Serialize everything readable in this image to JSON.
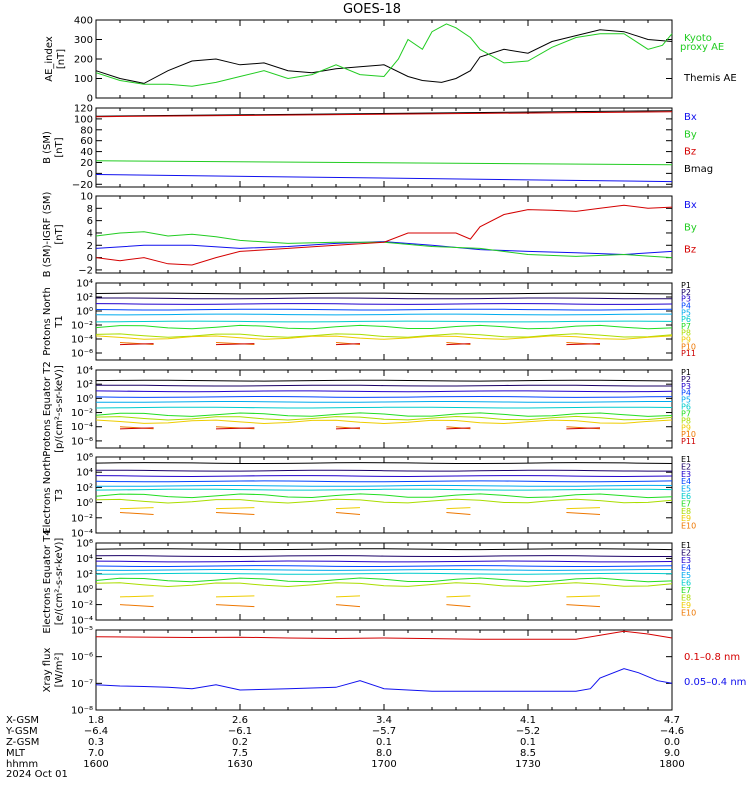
{
  "title": "GOES-18",
  "colors": {
    "black": "#000000",
    "red": "#d40000",
    "green": "#22cc22",
    "blue": "#1010ee",
    "P": [
      "#000000",
      "#1a0066",
      "#2200cc",
      "#0044ff",
      "#00aaee",
      "#00cccc",
      "#22dd22",
      "#aadd00",
      "#eecc00",
      "#ee7700",
      "#cc0000"
    ],
    "E": [
      "#000000",
      "#1a0066",
      "#2200cc",
      "#0044ff",
      "#00aaee",
      "#00cccc",
      "#22dd22",
      "#aadd00",
      "#eecc00",
      "#ee7700",
      "#cc0000",
      "#aa0000"
    ]
  },
  "chart_data": [
    {
      "type": "line",
      "ylabel": "AE_index [nT]",
      "ylim": [
        0,
        400
      ],
      "yticks": [
        "0",
        "100",
        "200",
        "300",
        "400"
      ],
      "legend": [
        {
          "label": "Kyoto proxy AE",
          "color": "green"
        },
        {
          "label": "Themis AE",
          "color": "black"
        }
      ],
      "series": [
        {
          "name": "Themis AE",
          "color": "black",
          "x": [
            1600,
            1605,
            1610,
            1615,
            1620,
            1625,
            1630,
            1635,
            1640,
            1645,
            1650,
            1655,
            1700,
            1705,
            1708,
            1712,
            1715,
            1718,
            1720,
            1725,
            1730,
            1735,
            1740,
            1745,
            1750,
            1755,
            1800
          ],
          "y": [
            140,
            100,
            75,
            140,
            190,
            200,
            170,
            180,
            140,
            130,
            150,
            160,
            170,
            110,
            90,
            80,
            100,
            140,
            210,
            250,
            230,
            290,
            320,
            350,
            340,
            300,
            290
          ]
        },
        {
          "name": "Kyoto proxy AE",
          "color": "green",
          "x": [
            1600,
            1605,
            1610,
            1615,
            1620,
            1625,
            1630,
            1635,
            1640,
            1645,
            1650,
            1655,
            1700,
            1703,
            1705,
            1708,
            1710,
            1713,
            1715,
            1718,
            1720,
            1725,
            1730,
            1735,
            1740,
            1745,
            1750,
            1755,
            1758,
            1800
          ],
          "y": [
            130,
            90,
            70,
            70,
            60,
            80,
            110,
            140,
            100,
            120,
            170,
            120,
            110,
            200,
            300,
            250,
            340,
            380,
            360,
            310,
            250,
            180,
            190,
            260,
            310,
            330,
            330,
            250,
            270,
            330
          ]
        }
      ]
    },
    {
      "type": "line",
      "ylabel": "B (SM) [nT]",
      "ylim": [
        -25,
        120
      ],
      "yticks": [
        "−20",
        "0",
        "20",
        "40",
        "60",
        "80",
        "100",
        "120"
      ],
      "legend": [
        {
          "label": "Bx",
          "color": "blue"
        },
        {
          "label": "By",
          "color": "green"
        },
        {
          "label": "Bz",
          "color": "red"
        },
        {
          "label": "Bmag",
          "color": "black"
        }
      ],
      "series": [
        {
          "name": "Bmag",
          "color": "black",
          "x": [
            1600,
            1800
          ],
          "y": [
            105,
            115
          ]
        },
        {
          "name": "Bz",
          "color": "red",
          "x": [
            1600,
            1800
          ],
          "y": [
            104,
            113
          ]
        },
        {
          "name": "By",
          "color": "green",
          "x": [
            1600,
            1800
          ],
          "y": [
            23,
            16
          ]
        },
        {
          "name": "Bx",
          "color": "blue",
          "x": [
            1600,
            1800
          ],
          "y": [
            -2,
            -15
          ]
        }
      ]
    },
    {
      "type": "line",
      "ylabel": "B (SM)-IGRF (SM) [nT]",
      "ylim": [
        -2.5,
        10
      ],
      "yticks": [
        "−2",
        "0",
        "2",
        "4",
        "6",
        "8",
        "10"
      ],
      "legend": [
        {
          "label": "Bx",
          "color": "blue"
        },
        {
          "label": "By",
          "color": "green"
        },
        {
          "label": "Bz",
          "color": "red"
        }
      ],
      "series": [
        {
          "name": "Bx",
          "color": "blue",
          "x": [
            1600,
            1610,
            1620,
            1630,
            1640,
            1650,
            1700,
            1710,
            1720,
            1730,
            1740,
            1750,
            1800
          ],
          "y": [
            1.5,
            2,
            2,
            1.5,
            1.8,
            2.3,
            2.6,
            2,
            1.3,
            1,
            0.8,
            0.5,
            1
          ]
        },
        {
          "name": "By",
          "color": "green",
          "x": [
            1600,
            1605,
            1610,
            1615,
            1620,
            1625,
            1630,
            1640,
            1650,
            1700,
            1710,
            1720,
            1730,
            1740,
            1750,
            1800
          ],
          "y": [
            3.5,
            4,
            4.2,
            3.5,
            3.8,
            3.4,
            2.8,
            2.3,
            2.5,
            2.5,
            1.8,
            1.5,
            0.5,
            0.2,
            0.5,
            0
          ]
        },
        {
          "name": "Bz",
          "color": "red",
          "x": [
            1600,
            1605,
            1610,
            1615,
            1620,
            1625,
            1630,
            1640,
            1650,
            1700,
            1705,
            1710,
            1715,
            1718,
            1720,
            1725,
            1730,
            1735,
            1740,
            1745,
            1750,
            1755,
            1800
          ],
          "y": [
            0,
            -0.5,
            0,
            -1,
            -1.2,
            0,
            1,
            1.5,
            2,
            2.5,
            4,
            4,
            4,
            3,
            5,
            7,
            7.8,
            7.7,
            7.5,
            8,
            8.5,
            8,
            8.2
          ]
        }
      ]
    },
    {
      "type": "line",
      "ylabel": "Protons North T1",
      "ytick_labels": [
        "10⁻⁶",
        "10⁻⁴",
        "10⁻²",
        "10⁰",
        "10²",
        "10⁴"
      ],
      "ylim_log": [
        -7,
        4
      ],
      "legend": [
        "P1",
        "P2",
        "P3",
        "P4",
        "P5",
        "P6",
        "P7",
        "P8",
        "P9",
        "P10",
        "P11"
      ],
      "levels": [
        2.5,
        1.8,
        1,
        0.2,
        -0.5,
        -1.5,
        -2.3,
        -3.5,
        -3.8,
        -4.5,
        -4.8
      ]
    },
    {
      "type": "line",
      "ylabel": "Protons Equator T2 [p/(cm²-s-sr-keV)]",
      "ytick_labels": [
        "10⁻⁶",
        "10⁻⁴",
        "10⁻²",
        "10⁰",
        "10²",
        "10⁴"
      ],
      "ylim_log": [
        -7,
        4
      ],
      "legend": [
        "P1",
        "P2",
        "P3",
        "P4",
        "P5",
        "P6",
        "P7",
        "P8",
        "P9",
        "P10",
        "P11"
      ],
      "levels": [
        2.5,
        1.8,
        1,
        0.2,
        -0.5,
        -1.3,
        -2.3,
        -2.8,
        -3.3,
        -4,
        -4.3
      ]
    },
    {
      "type": "line",
      "ylabel": "Electrons North T3",
      "ytick_labels": [
        "10⁻⁴",
        "10⁻²",
        "10⁰",
        "10²",
        "10⁴",
        "10⁶"
      ],
      "ylim_log": [
        -4,
        6
      ],
      "legend": [
        "E1",
        "E2",
        "E3",
        "E4",
        "E5",
        "E6",
        "E7",
        "E8",
        "E9",
        "E10"
      ],
      "levels": [
        5.2,
        4.2,
        3.5,
        2.8,
        2.2,
        1.7,
        0.9,
        0.2,
        -0.8,
        -1.3
      ]
    },
    {
      "type": "line",
      "ylabel": "Electrons Equator T4 [e/(cm²-s-sr-keV)]",
      "ytick_labels": [
        "10⁻⁴",
        "10⁻²",
        "10⁰",
        "10²",
        "10⁴",
        "10⁶"
      ],
      "ylim_log": [
        -4,
        6
      ],
      "legend": [
        "E1",
        "E2",
        "E3",
        "E4",
        "E5",
        "E6",
        "E7",
        "E8",
        "E9",
        "E10"
      ],
      "levels": [
        5.2,
        4.3,
        3.6,
        3,
        2.5,
        2,
        1.2,
        0.6,
        -1,
        -2
      ]
    },
    {
      "type": "line",
      "ylabel": "Xray flux [W/m²]",
      "ytick_labels": [
        "10⁻⁸",
        "10⁻⁷",
        "10⁻⁶",
        "10⁻⁵"
      ],
      "ylim_log": [
        -8,
        -5
      ],
      "legend": [
        {
          "label": "0.1–0.8 nm",
          "color": "red"
        },
        {
          "label": "0.05–0.4 nm",
          "color": "blue"
        }
      ],
      "series": [
        {
          "name": "0.1–0.8 nm",
          "color": "red",
          "x": [
            1600,
            1620,
            1630,
            1640,
            1650,
            1700,
            1720,
            1740,
            1745,
            1750,
            1755,
            1800
          ],
          "y": [
            -5.25,
            -5.28,
            -5.27,
            -5.3,
            -5.32,
            -5.3,
            -5.35,
            -5.35,
            -5.2,
            -5.05,
            -5.15,
            -5.3
          ]
        },
        {
          "name": "0.05–0.4 nm",
          "color": "blue",
          "x": [
            1600,
            1605,
            1610,
            1615,
            1620,
            1625,
            1630,
            1640,
            1650,
            1655,
            1700,
            1705,
            1710,
            1720,
            1730,
            1740,
            1743,
            1745,
            1750,
            1753,
            1757,
            1800
          ],
          "y": [
            -7.05,
            -7.1,
            -7.12,
            -7.15,
            -7.2,
            -7.05,
            -7.25,
            -7.2,
            -7.15,
            -6.9,
            -7.2,
            -7.25,
            -7.3,
            -7.3,
            -7.3,
            -7.3,
            -7.2,
            -6.8,
            -6.45,
            -6.6,
            -6.9,
            -7.0
          ]
        }
      ]
    }
  ],
  "x_axis": {
    "row_labels": [
      "X-GSM",
      "Y-GSM",
      "Z-GSM",
      "MLT",
      "hhmm",
      "2024 Oct 01"
    ],
    "columns": [
      {
        "pos": 1600,
        "values": [
          "1.8",
          "−6.4",
          "0.3",
          "7.0",
          "1600"
        ]
      },
      {
        "pos": 1630,
        "values": [
          "2.6",
          "−6.1",
          "0.2",
          "7.5",
          "1630"
        ]
      },
      {
        "pos": 1700,
        "values": [
          "3.4",
          "−5.7",
          "0.1",
          "8.0",
          "1700"
        ]
      },
      {
        "pos": 1730,
        "values": [
          "4.1",
          "−5.2",
          "0.1",
          "8.5",
          "1730"
        ]
      },
      {
        "pos": 1800,
        "values": [
          "4.7",
          "−4.6",
          "0.0",
          "9.0",
          "1800"
        ]
      }
    ]
  }
}
